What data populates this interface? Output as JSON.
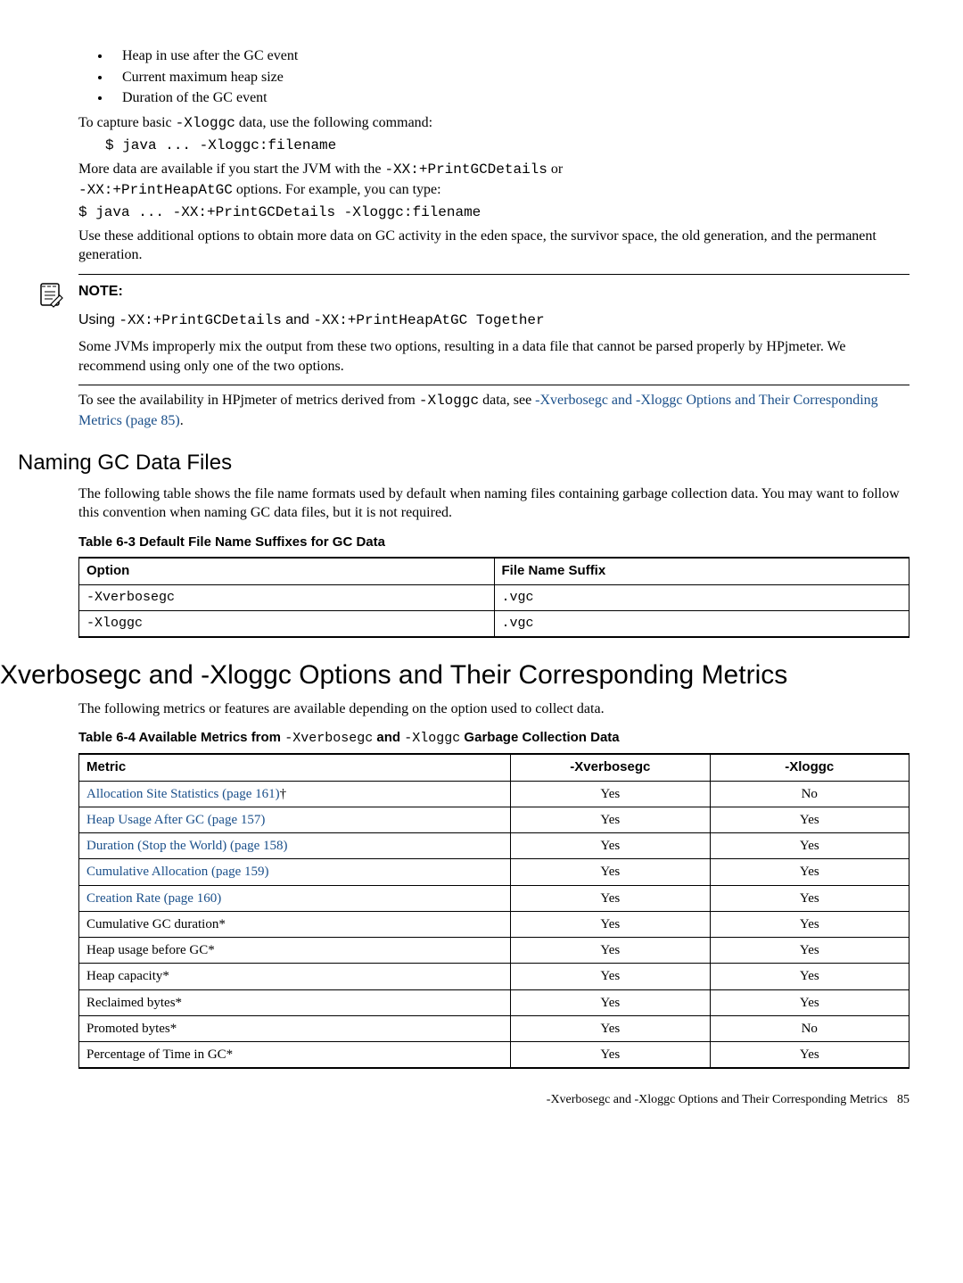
{
  "bullets": [
    "Heap in use after the GC event",
    "Current maximum heap size",
    "Duration of the GC event"
  ],
  "p1_pre": "To capture basic ",
  "p1_code": "-Xloggc",
  "p1_post": " data, use the following command:",
  "cmd1": "$ java ... -Xloggc:filename",
  "p2_pre": "More data are available if you start the JVM with the ",
  "p2_code1": "-XX:+PrintGCDetails",
  "p2_mid": " or ",
  "p2_code2": "-XX:+PrintHeapAtGC",
  "p2_post": " options. For example, you can type:",
  "cmd2": "$ java ... -XX:+PrintGCDetails -Xloggc:filename",
  "p3": "Use these additional options to obtain more data on GC activity in the eden space, the survivor space, the old generation, and the permanent generation.",
  "note": {
    "label": "NOTE:",
    "line1_pre": "Using ",
    "line1_c1": "-XX:+PrintGCDetails",
    "line1_mid": " and ",
    "line1_c2": "-XX:+PrintHeapAtGC",
    "line1_post": " Together",
    "body": "Some JVMs improperly mix the output from these two options, resulting in a data file that cannot be parsed properly by HPjmeter. We recommend using only one of the two options."
  },
  "p4_pre": "To see the availability in HPjmeter of metrics derived from ",
  "p4_code": "-Xloggc",
  "p4_mid": " data, see ",
  "p4_link": "-Xverbosegc and -Xloggc Options and Their Corresponding Metrics (page 85)",
  "p4_post": ".",
  "h2_naming": "Naming GC Data Files",
  "p5": "The following table shows the file name formats used by default when naming files containing garbage collection data. You may want to follow this convention when naming GC data files, but it is not required.",
  "t63_caption": "Table 6-3 Default File Name Suffixes for GC Data",
  "t63": {
    "head": [
      "Option",
      "File Name Suffix"
    ],
    "rows": [
      [
        "-Xverbosegc",
        ".vgc"
      ],
      [
        "-Xloggc",
        ".vgc"
      ]
    ]
  },
  "h1_main": "-Xverbosegc and -Xloggc Options and Their Corresponding Metrics",
  "p6": "The following metrics or features are available depending on the option used to collect data.",
  "t64_caption_pre": "Table 6-4 Available Metrics from ",
  "t64_caption_c1": "-Xverbosegc",
  "t64_caption_mid": " and ",
  "t64_caption_c2": "-Xloggc",
  "t64_caption_post": " Garbage Collection Data",
  "t64": {
    "head": [
      "Metric",
      "-Xverbosegc",
      "-Xloggc"
    ],
    "rows": [
      {
        "metric": "Allocation Site Statistics (page 161)",
        "suffix": "†",
        "link": true,
        "v": "Yes",
        "x": "No"
      },
      {
        "metric": "Heap Usage After GC (page 157)",
        "suffix": "",
        "link": true,
        "v": "Yes",
        "x": "Yes"
      },
      {
        "metric": "Duration (Stop the World) (page 158)",
        "suffix": "",
        "link": true,
        "v": "Yes",
        "x": "Yes"
      },
      {
        "metric": "Cumulative Allocation (page 159)",
        "suffix": "",
        "link": true,
        "v": "Yes",
        "x": "Yes"
      },
      {
        "metric": "Creation Rate (page 160)",
        "suffix": "",
        "link": true,
        "v": "Yes",
        "x": "Yes"
      },
      {
        "metric": "Cumulative GC duration*",
        "suffix": "",
        "link": false,
        "v": "Yes",
        "x": "Yes"
      },
      {
        "metric": "Heap usage before GC*",
        "suffix": "",
        "link": false,
        "v": "Yes",
        "x": "Yes"
      },
      {
        "metric": "Heap capacity*",
        "suffix": "",
        "link": false,
        "v": "Yes",
        "x": "Yes"
      },
      {
        "metric": "Reclaimed bytes*",
        "suffix": "",
        "link": false,
        "v": "Yes",
        "x": "Yes"
      },
      {
        "metric": "Promoted bytes*",
        "suffix": "",
        "link": false,
        "v": "Yes",
        "x": "No"
      },
      {
        "metric": "Percentage of Time in GC*",
        "suffix": "",
        "link": false,
        "v": "Yes",
        "x": "Yes"
      }
    ]
  },
  "footer_text": "-Xverbosegc and -Xloggc Options and Their Corresponding Metrics",
  "footer_page": "85"
}
